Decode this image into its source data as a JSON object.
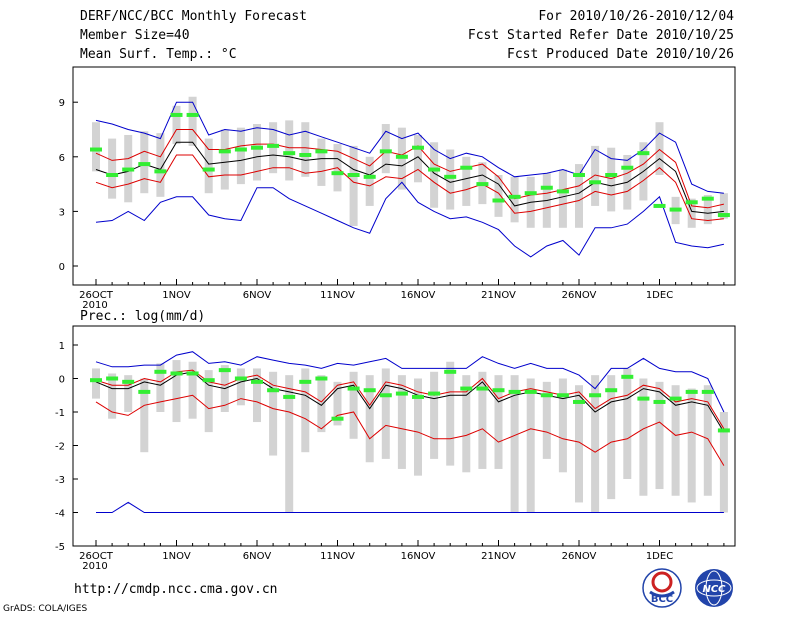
{
  "header": {
    "title": "DERF/NCC/BCC Monthly Forecast",
    "member_size": "Member Size=40",
    "variable": "Mean Surf. Temp.: °C",
    "period": "For 2010/10/26-2010/12/04",
    "fcst_started": "Fcst Started Refer Date 2010/10/25",
    "fcst_produced": "Fcst Produced Date 2010/10/26"
  },
  "bottom_panel_label": "Prec.: log(mm/d)",
  "url": "http://cmdp.ncc.cma.gov.cn",
  "credit": "GrADS: COLA/IGES",
  "logos": {
    "left": "BCC",
    "right": "NCC"
  },
  "colors": {
    "box": "#d3d3d3",
    "member_median": "#33ee33",
    "mean": "#000000",
    "inner": "#dd0000",
    "outer": "#0000cc"
  },
  "chart_data": [
    {
      "type": "box-ensemble",
      "title": "Mean Surf. Temp.: °C",
      "xlabel": "",
      "ylabel": "",
      "ylim": [
        -1,
        10.5
      ],
      "yticks": [
        0,
        3,
        6,
        9
      ],
      "tick_labels": [
        "26OCT",
        "1NOV",
        "6NOV",
        "11NOV",
        "16NOV",
        "21NOV",
        "26NOV",
        "1DEC"
      ],
      "first_label_year": "2010",
      "days": 40,
      "series": [
        {
          "name": "ensemble mean",
          "values": [
            5.3,
            5.0,
            5.2,
            5.6,
            5.3,
            6.8,
            6.8,
            5.6,
            5.7,
            5.8,
            6.0,
            6.1,
            6.0,
            5.8,
            5.9,
            5.9,
            5.3,
            5.0,
            5.6,
            5.5,
            6.0,
            5.1,
            4.6,
            4.8,
            5.0,
            4.5,
            3.3,
            3.5,
            3.6,
            3.8,
            4.0,
            4.6,
            4.4,
            4.6,
            5.2,
            5.9,
            5.2,
            3.0,
            2.9,
            3.0
          ]
        },
        {
          "name": "upper inner",
          "values": [
            6.2,
            5.8,
            5.9,
            6.3,
            6.0,
            7.5,
            7.5,
            6.4,
            6.4,
            6.6,
            6.7,
            6.7,
            6.5,
            6.5,
            6.4,
            6.3,
            5.9,
            5.5,
            6.3,
            6.1,
            6.6,
            5.6,
            5.2,
            5.4,
            5.6,
            4.9,
            3.7,
            3.9,
            4.0,
            4.2,
            4.4,
            5.0,
            4.8,
            5.1,
            5.6,
            6.4,
            5.7,
            3.3,
            3.2,
            3.4
          ]
        },
        {
          "name": "lower inner",
          "values": [
            4.6,
            4.3,
            4.5,
            4.8,
            4.6,
            6.1,
            6.1,
            4.9,
            5.0,
            5.0,
            5.2,
            5.4,
            5.4,
            5.1,
            5.2,
            5.4,
            4.6,
            4.4,
            4.9,
            4.8,
            5.3,
            4.6,
            4.0,
            4.2,
            4.5,
            4.0,
            2.9,
            3.0,
            3.2,
            3.4,
            3.6,
            4.1,
            3.9,
            4.1,
            4.7,
            5.4,
            4.6,
            2.6,
            2.5,
            2.6
          ]
        },
        {
          "name": "upper outer",
          "values": [
            8.0,
            7.8,
            7.5,
            7.3,
            7.0,
            9.0,
            9.0,
            7.2,
            7.5,
            7.4,
            7.6,
            7.5,
            7.2,
            7.4,
            7.1,
            6.8,
            6.5,
            6.2,
            7.4,
            7.0,
            7.3,
            6.4,
            5.9,
            6.2,
            6.0,
            5.4,
            4.9,
            5.0,
            5.1,
            5.3,
            5.0,
            6.4,
            5.9,
            5.8,
            6.4,
            7.3,
            6.8,
            4.5,
            4.1,
            4.0
          ]
        },
        {
          "name": "lower outer",
          "values": [
            2.4,
            2.5,
            3.0,
            2.5,
            3.5,
            3.8,
            3.8,
            2.8,
            2.6,
            2.5,
            4.3,
            4.3,
            3.7,
            3.3,
            2.9,
            2.5,
            2.1,
            1.8,
            3.7,
            4.6,
            3.5,
            3.0,
            2.6,
            2.7,
            2.4,
            2.0,
            1.1,
            0.5,
            1.1,
            1.4,
            0.6,
            2.1,
            2.1,
            2.3,
            3.0,
            3.8,
            1.3,
            1.1,
            1.0,
            1.2
          ]
        }
      ],
      "medians": [
        6.4,
        5.0,
        5.3,
        5.6,
        5.2,
        8.3,
        8.3,
        5.3,
        6.3,
        6.4,
        6.5,
        6.6,
        6.2,
        6.1,
        6.3,
        5.1,
        5.0,
        4.9,
        6.3,
        6.0,
        6.5,
        5.3,
        4.9,
        5.4,
        4.5,
        3.6,
        3.8,
        4.0,
        4.3,
        4.1,
        5.0,
        4.6,
        5.0,
        5.4,
        6.2,
        3.3,
        3.1,
        3.5,
        3.7,
        2.8
      ],
      "box_top": [
        7.9,
        7.0,
        7.2,
        7.4,
        7.3,
        8.8,
        9.3,
        7.0,
        7.5,
        7.6,
        7.8,
        7.9,
        8.0,
        7.9,
        7.0,
        6.7,
        6.6,
        6.0,
        7.8,
        7.6,
        7.2,
        6.8,
        6.4,
        6.0,
        5.7,
        5.0,
        4.9,
        4.9,
        5.1,
        5.3,
        5.6,
        6.6,
        6.5,
        6.1,
        6.8,
        7.9,
        3.8,
        3.7,
        3.9,
        4.0
      ],
      "box_bottom": [
        5.2,
        3.7,
        3.5,
        4.0,
        3.8,
        6.7,
        6.6,
        4.0,
        4.2,
        4.5,
        4.7,
        5.1,
        4.7,
        4.9,
        4.4,
        4.1,
        2.2,
        3.3,
        5.1,
        4.2,
        4.6,
        3.2,
        3.1,
        3.3,
        3.4,
        2.7,
        2.4,
        2.1,
        2.1,
        2.1,
        2.1,
        3.3,
        3.0,
        3.1,
        3.6,
        5.0,
        2.3,
        2.1,
        2.3,
        2.6
      ]
    },
    {
      "type": "box-ensemble",
      "title": "Prec.: log(mm/d)",
      "xlabel": "",
      "ylabel": "",
      "ylim": [
        -5,
        1.4
      ],
      "yticks": [
        -5,
        -4,
        -3,
        -2,
        -1,
        0,
        1
      ],
      "tick_labels": [
        "26OCT",
        "1NOV",
        "6NOV",
        "11NOV",
        "16NOV",
        "21NOV",
        "26NOV",
        "1DEC"
      ],
      "first_label_year": "2010",
      "days": 40,
      "series": [
        {
          "name": "ensemble mean",
          "values": [
            -0.1,
            -0.3,
            -0.3,
            -0.1,
            -0.2,
            0.1,
            0.2,
            -0.2,
            -0.3,
            -0.1,
            0.0,
            -0.3,
            -0.4,
            -0.5,
            -0.8,
            -0.3,
            -0.2,
            -0.9,
            -0.2,
            -0.3,
            -0.5,
            -0.6,
            -0.5,
            -0.5,
            -0.1,
            -0.7,
            -0.5,
            -0.4,
            -0.5,
            -0.6,
            -0.5,
            -1.0,
            -0.7,
            -0.6,
            -0.3,
            -0.4,
            -0.8,
            -0.7,
            -0.8,
            -1.6
          ]
        },
        {
          "name": "upper inner",
          "values": [
            -0.05,
            -0.2,
            -0.2,
            0.0,
            -0.1,
            0.2,
            0.25,
            -0.1,
            -0.2,
            0.0,
            0.1,
            -0.2,
            -0.3,
            -0.4,
            -0.7,
            -0.2,
            -0.1,
            -0.8,
            -0.1,
            -0.2,
            -0.4,
            -0.5,
            -0.4,
            -0.4,
            0.0,
            -0.6,
            -0.4,
            -0.3,
            -0.4,
            -0.5,
            -0.4,
            -0.9,
            -0.6,
            -0.5,
            -0.2,
            -0.3,
            -0.7,
            -0.6,
            -0.7,
            -1.5
          ]
        },
        {
          "name": "lower inner",
          "values": [
            -0.7,
            -1.0,
            -1.1,
            -0.8,
            -0.7,
            -0.6,
            -0.5,
            -0.9,
            -0.8,
            -0.6,
            -0.7,
            -0.9,
            -1.0,
            -1.2,
            -1.5,
            -1.1,
            -1.0,
            -1.8,
            -1.4,
            -1.5,
            -1.6,
            -1.8,
            -1.8,
            -1.7,
            -1.5,
            -1.9,
            -1.7,
            -1.5,
            -1.6,
            -1.8,
            -1.9,
            -2.2,
            -1.9,
            -1.8,
            -1.5,
            -1.3,
            -1.7,
            -1.6,
            -1.8,
            -2.6
          ]
        },
        {
          "name": "upper outer",
          "values": [
            0.5,
            0.35,
            0.35,
            0.4,
            0.4,
            0.7,
            0.8,
            0.45,
            0.5,
            0.4,
            0.65,
            0.55,
            0.45,
            0.4,
            0.3,
            0.45,
            0.4,
            0.5,
            0.6,
            0.3,
            0.3,
            0.3,
            0.3,
            0.3,
            0.65,
            0.45,
            0.3,
            0.45,
            0.3,
            0.3,
            0.1,
            -0.3,
            0.3,
            0.3,
            0.6,
            0.3,
            0.2,
            0.2,
            0.0,
            -1.0
          ]
        },
        {
          "name": "lower outer",
          "values": [
            -4.0,
            -4.0,
            -3.7,
            -4.0,
            -4.0,
            -4.0,
            -4.0,
            -4.0,
            -4.0,
            -4.0,
            -4.0,
            -4.0,
            -4.0,
            -4.0,
            -4.0,
            -4.0,
            -4.0,
            -4.0,
            -4.0,
            -4.0,
            -4.0,
            -4.0,
            -4.0,
            -4.0,
            -4.0,
            -4.0,
            -4.0,
            -4.0,
            -4.0,
            -4.0,
            -4.0,
            -4.0,
            -4.0,
            -4.0,
            -4.0,
            -4.0,
            -4.0,
            -4.0,
            -4.0,
            -4.0
          ]
        }
      ],
      "medians": [
        -0.05,
        0.0,
        -0.1,
        -0.4,
        0.2,
        0.15,
        0.15,
        -0.05,
        0.25,
        0.0,
        -0.1,
        -0.35,
        -0.55,
        -0.1,
        0.0,
        -1.2,
        -0.3,
        -0.35,
        -0.5,
        -0.45,
        -0.55,
        -0.45,
        0.2,
        -0.3,
        -0.3,
        -0.35,
        -0.4,
        -0.4,
        -0.5,
        -0.5,
        -0.7,
        -0.5,
        -0.35,
        0.05,
        -0.6,
        -0.7,
        -0.6,
        -0.4,
        -0.4,
        -1.55
      ],
      "box_top": [
        0.3,
        0.15,
        0.1,
        0.0,
        0.45,
        0.55,
        0.5,
        0.25,
        0.4,
        0.3,
        0.3,
        0.2,
        0.1,
        0.3,
        0.1,
        -0.1,
        0.2,
        0.1,
        0.3,
        0.1,
        0.0,
        0.2,
        0.5,
        0.1,
        0.2,
        0.1,
        0.1,
        0.0,
        -0.1,
        0.0,
        -0.2,
        0.1,
        0.1,
        0.3,
        0.0,
        -0.1,
        -0.2,
        -0.3,
        -0.2,
        -1.0
      ],
      "box_bottom": [
        -0.6,
        -1.2,
        -1.0,
        -2.2,
        -1.0,
        -1.3,
        -1.2,
        -1.6,
        -1.0,
        -0.8,
        -1.3,
        -2.3,
        -4.0,
        -2.2,
        -1.6,
        -1.4,
        -1.8,
        -2.5,
        -2.4,
        -2.7,
        -2.9,
        -2.4,
        -2.6,
        -2.8,
        -2.7,
        -2.7,
        -4.0,
        -4.0,
        -2.4,
        -2.8,
        -3.7,
        -4.0,
        -3.6,
        -3.0,
        -3.5,
        -3.3,
        -3.5,
        -3.7,
        -3.5,
        -4.0
      ]
    }
  ]
}
